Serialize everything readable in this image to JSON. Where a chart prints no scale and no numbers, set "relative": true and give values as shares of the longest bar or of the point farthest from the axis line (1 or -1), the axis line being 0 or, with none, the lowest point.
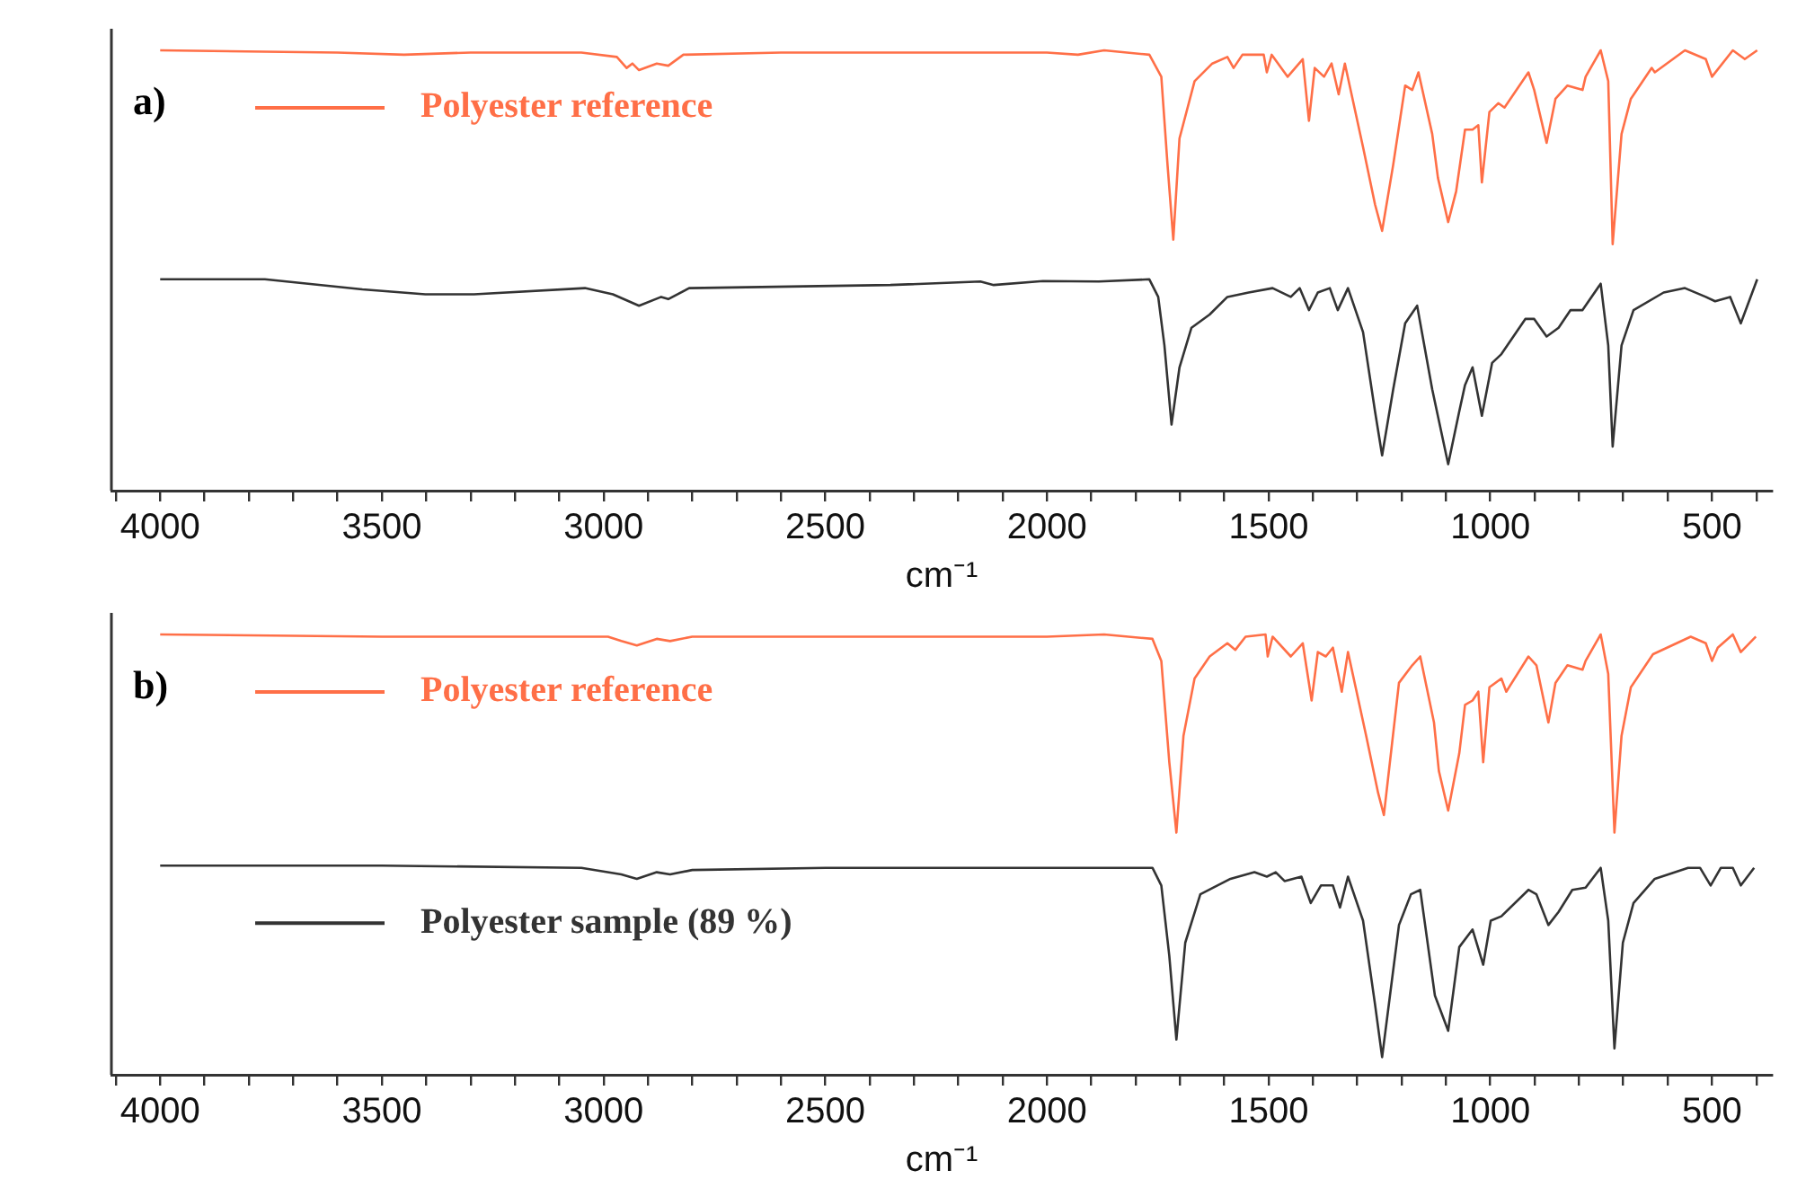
{
  "chart_data": [
    {
      "type": "line",
      "title": "a)",
      "xlabel": "cm⁻¹",
      "relative": true,
      "legend": "top left",
      "xlim": [
        4110,
        365
      ],
      "xticks": [
        {
          "value": 4100,
          "label": null
        },
        4000,
        {
          "value": 3900,
          "label": null
        },
        {
          "value": 3800,
          "label": null
        },
        {
          "value": 3700,
          "label": null
        },
        {
          "value": 3600,
          "label": null
        },
        3500,
        {
          "value": 3400,
          "label": null
        },
        {
          "value": 3300,
          "label": null
        },
        {
          "value": 3200,
          "label": null
        },
        {
          "value": 3100,
          "label": null
        },
        3000,
        {
          "value": 2900,
          "label": null
        },
        {
          "value": 2800,
          "label": null
        },
        {
          "value": 2700,
          "label": null
        },
        {
          "value": 2600,
          "label": null
        },
        2500,
        {
          "value": 2400,
          "label": null
        },
        {
          "value": 2300,
          "label": null
        },
        {
          "value": 2200,
          "label": null
        },
        {
          "value": 2100,
          "label": null
        },
        2000,
        {
          "value": 1900,
          "label": null
        },
        {
          "value": 1800,
          "label": null
        },
        {
          "value": 1700,
          "label": null
        },
        {
          "value": 1600,
          "label": null
        },
        1500,
        {
          "value": 1400,
          "label": null
        },
        {
          "value": 1300,
          "label": null
        },
        {
          "value": 1200,
          "label": null
        },
        {
          "value": 1100,
          "label": null
        },
        1000,
        {
          "value": 900,
          "label": null
        },
        {
          "value": 800,
          "label": null
        },
        {
          "value": 700,
          "label": null
        },
        {
          "value": 600,
          "label": null
        },
        500,
        {
          "value": 400,
          "label": null
        }
      ],
      "series": [
        {
          "name": "Polyester reference",
          "color": "#ff6f47",
          "x": [
            4000,
            3600,
            3450,
            3300,
            3050,
            2970,
            2948,
            2935,
            2920,
            2880,
            2854,
            2820,
            2600,
            2000,
            1930,
            1871,
            1769,
            1742,
            1728,
            1715,
            1701,
            1667,
            1627,
            1593,
            1579,
            1559,
            1511,
            1504,
            1493,
            1457,
            1423,
            1409,
            1396,
            1375,
            1358,
            1342,
            1328,
            1287,
            1260,
            1244,
            1219,
            1192,
            1176,
            1162,
            1131,
            1118,
            1095,
            1077,
            1057,
            1040,
            1027,
            1019,
            1002,
            982,
            968,
            914,
            901,
            873,
            853,
            826,
            792,
            785,
            751,
            734,
            724,
            704,
            683,
            636,
            629,
            561,
            514,
            500,
            453,
            426,
            398
          ],
          "values": [
            1.0,
            0.995,
            0.99,
            0.995,
            0.995,
            0.985,
            0.96,
            0.97,
            0.955,
            0.97,
            0.965,
            0.99,
            0.995,
            0.995,
            0.99,
            1.0,
            0.99,
            0.94,
            0.74,
            0.57,
            0.8,
            0.93,
            0.97,
            0.985,
            0.96,
            0.99,
            0.99,
            0.95,
            0.99,
            0.94,
            0.98,
            0.84,
            0.96,
            0.94,
            0.97,
            0.9,
            0.97,
            0.78,
            0.65,
            0.59,
            0.74,
            0.92,
            0.91,
            0.95,
            0.81,
            0.71,
            0.61,
            0.68,
            0.82,
            0.82,
            0.83,
            0.7,
            0.86,
            0.88,
            0.87,
            0.95,
            0.91,
            0.79,
            0.89,
            0.92,
            0.91,
            0.94,
            1.0,
            0.93,
            0.56,
            0.81,
            0.89,
            0.96,
            0.95,
            1.0,
            0.98,
            0.94,
            1.0,
            0.98,
            1.0
          ]
        },
        {
          "color": "#333333",
          "x": [
            4000,
            3764,
            3544,
            3402,
            3292,
            3042,
            2979,
            2920,
            2870,
            2854,
            2807,
            2353,
            2150,
            2120,
            2009,
            1883,
            1769,
            1749,
            1735,
            1719,
            1701,
            1674,
            1633,
            1593,
            1545,
            1491,
            1450,
            1430,
            1409,
            1389,
            1362,
            1344,
            1321,
            1287,
            1260,
            1244,
            1219,
            1192,
            1165,
            1131,
            1095,
            1070,
            1057,
            1040,
            1019,
            996,
            975,
            921,
            901,
            873,
            846,
            819,
            792,
            751,
            734,
            724,
            704,
            677,
            609,
            561,
            514,
            493,
            459,
            435,
            398
          ],
          "values": [
            0.48,
            0.48,
            0.457,
            0.446,
            0.446,
            0.46,
            0.446,
            0.42,
            0.44,
            0.435,
            0.46,
            0.467,
            0.475,
            0.467,
            0.476,
            0.475,
            0.48,
            0.44,
            0.33,
            0.15,
            0.28,
            0.37,
            0.4,
            0.44,
            0.45,
            0.46,
            0.44,
            0.46,
            0.41,
            0.45,
            0.46,
            0.41,
            0.46,
            0.36,
            0.18,
            0.08,
            0.23,
            0.38,
            0.42,
            0.23,
            0.06,
            0.18,
            0.24,
            0.28,
            0.17,
            0.29,
            0.31,
            0.39,
            0.39,
            0.35,
            0.37,
            0.41,
            0.41,
            0.47,
            0.33,
            0.1,
            0.33,
            0.41,
            0.45,
            0.46,
            0.44,
            0.43,
            0.44,
            0.38,
            0.48
          ]
        }
      ]
    },
    {
      "type": "line",
      "title": "b)",
      "xlabel": "cm⁻¹",
      "relative": true,
      "legend": "top left",
      "xlim": [
        4110,
        365
      ],
      "xticks": [
        {
          "value": 4100,
          "label": null
        },
        4000,
        {
          "value": 3900,
          "label": null
        },
        {
          "value": 3800,
          "label": null
        },
        {
          "value": 3700,
          "label": null
        },
        {
          "value": 3600,
          "label": null
        },
        3500,
        {
          "value": 3400,
          "label": null
        },
        {
          "value": 3300,
          "label": null
        },
        {
          "value": 3200,
          "label": null
        },
        {
          "value": 3100,
          "label": null
        },
        3000,
        {
          "value": 2900,
          "label": null
        },
        {
          "value": 2800,
          "label": null
        },
        {
          "value": 2700,
          "label": null
        },
        {
          "value": 2600,
          "label": null
        },
        2500,
        {
          "value": 2400,
          "label": null
        },
        {
          "value": 2300,
          "label": null
        },
        {
          "value": 2200,
          "label": null
        },
        {
          "value": 2100,
          "label": null
        },
        2000,
        {
          "value": 1900,
          "label": null
        },
        {
          "value": 1800,
          "label": null
        },
        {
          "value": 1700,
          "label": null
        },
        {
          "value": 1600,
          "label": null
        },
        1500,
        {
          "value": 1400,
          "label": null
        },
        {
          "value": 1300,
          "label": null
        },
        {
          "value": 1200,
          "label": null
        },
        {
          "value": 1100,
          "label": null
        },
        1000,
        {
          "value": 900,
          "label": null
        },
        {
          "value": 800,
          "label": null
        },
        {
          "value": 700,
          "label": null
        },
        {
          "value": 600,
          "label": null
        },
        500,
        {
          "value": 400,
          "label": null
        }
      ],
      "series": [
        {
          "name": "Polyester reference",
          "color": "#ff6f47",
          "x": [
            4000,
            3500,
            2990,
            2960,
            2925,
            2880,
            2850,
            2800,
            2000,
            1871,
            1762,
            1742,
            1724,
            1708,
            1692,
            1667,
            1633,
            1593,
            1575,
            1552,
            1507,
            1502,
            1491,
            1450,
            1423,
            1403,
            1389,
            1371,
            1355,
            1335,
            1321,
            1280,
            1253,
            1240,
            1206,
            1176,
            1158,
            1127,
            1116,
            1095,
            1070,
            1057,
            1040,
            1027,
            1016,
            1002,
            975,
            964,
            914,
            896,
            869,
            853,
            826,
            792,
            785,
            751,
            734,
            720,
            704,
            683,
            633,
            548,
            514,
            500,
            487,
            453,
            435,
            401
          ],
          "values": [
            1.0,
            0.995,
            0.995,
            0.985,
            0.975,
            0.99,
            0.985,
            0.995,
            0.995,
            1.0,
            0.99,
            0.94,
            0.71,
            0.55,
            0.77,
            0.9,
            0.95,
            0.98,
            0.965,
            0.995,
            1.0,
            0.95,
            0.995,
            0.95,
            0.98,
            0.85,
            0.96,
            0.95,
            0.97,
            0.87,
            0.96,
            0.77,
            0.64,
            0.59,
            0.89,
            0.93,
            0.95,
            0.8,
            0.69,
            0.6,
            0.73,
            0.84,
            0.85,
            0.87,
            0.71,
            0.88,
            0.9,
            0.87,
            0.95,
            0.93,
            0.8,
            0.89,
            0.93,
            0.92,
            0.94,
            1.0,
            0.91,
            0.55,
            0.77,
            0.88,
            0.955,
            0.995,
            0.98,
            0.94,
            0.97,
            1.0,
            0.96,
            0.995
          ]
        },
        {
          "name": "Polyester sample (89 %)",
          "color": "#333333",
          "x": [
            4000,
            3500,
            3050,
            2960,
            2925,
            2880,
            2850,
            2800,
            2500,
            2150,
            1950,
            1871,
            1762,
            1742,
            1724,
            1708,
            1688,
            1654,
            1586,
            1532,
            1504,
            1484,
            1464,
            1426,
            1405,
            1382,
            1355,
            1339,
            1321,
            1287,
            1260,
            1244,
            1206,
            1179,
            1158,
            1125,
            1095,
            1070,
            1040,
            1016,
            999,
            975,
            914,
            896,
            869,
            846,
            815,
            785,
            751,
            734,
            720,
            701,
            677,
            629,
            554,
            527,
            503,
            480,
            453,
            435,
            405
          ],
          "values": [
            0.475,
            0.475,
            0.47,
            0.455,
            0.445,
            0.46,
            0.455,
            0.465,
            0.47,
            0.47,
            0.47,
            0.47,
            0.47,
            0.43,
            0.27,
            0.08,
            0.3,
            0.41,
            0.445,
            0.46,
            0.45,
            0.46,
            0.44,
            0.45,
            0.39,
            0.43,
            0.43,
            0.38,
            0.45,
            0.35,
            0.16,
            0.04,
            0.34,
            0.41,
            0.42,
            0.18,
            0.1,
            0.29,
            0.33,
            0.25,
            0.35,
            0.36,
            0.42,
            0.41,
            0.34,
            0.37,
            0.42,
            0.425,
            0.47,
            0.35,
            0.06,
            0.3,
            0.39,
            0.445,
            0.47,
            0.47,
            0.43,
            0.47,
            0.47,
            0.43,
            0.47
          ]
        }
      ]
    }
  ]
}
